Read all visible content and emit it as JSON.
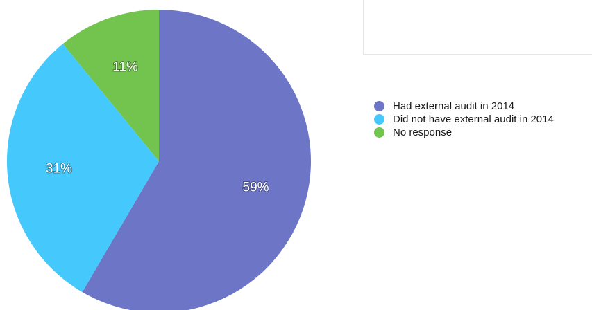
{
  "chart_data": {
    "type": "pie",
    "title": "",
    "slices": [
      {
        "label": "Had external audit in 2014",
        "value": 59,
        "display": "59%",
        "color": "#6c75c6"
      },
      {
        "label": "Did not have external audit in 2014",
        "value": 31,
        "display": "31%",
        "color": "#45c8fb"
      },
      {
        "label": "No response",
        "value": 11,
        "display": "11%",
        "color": "#72c44f"
      }
    ],
    "start_angle_deg": 0,
    "direction": "clockwise",
    "legend_position": "right"
  }
}
